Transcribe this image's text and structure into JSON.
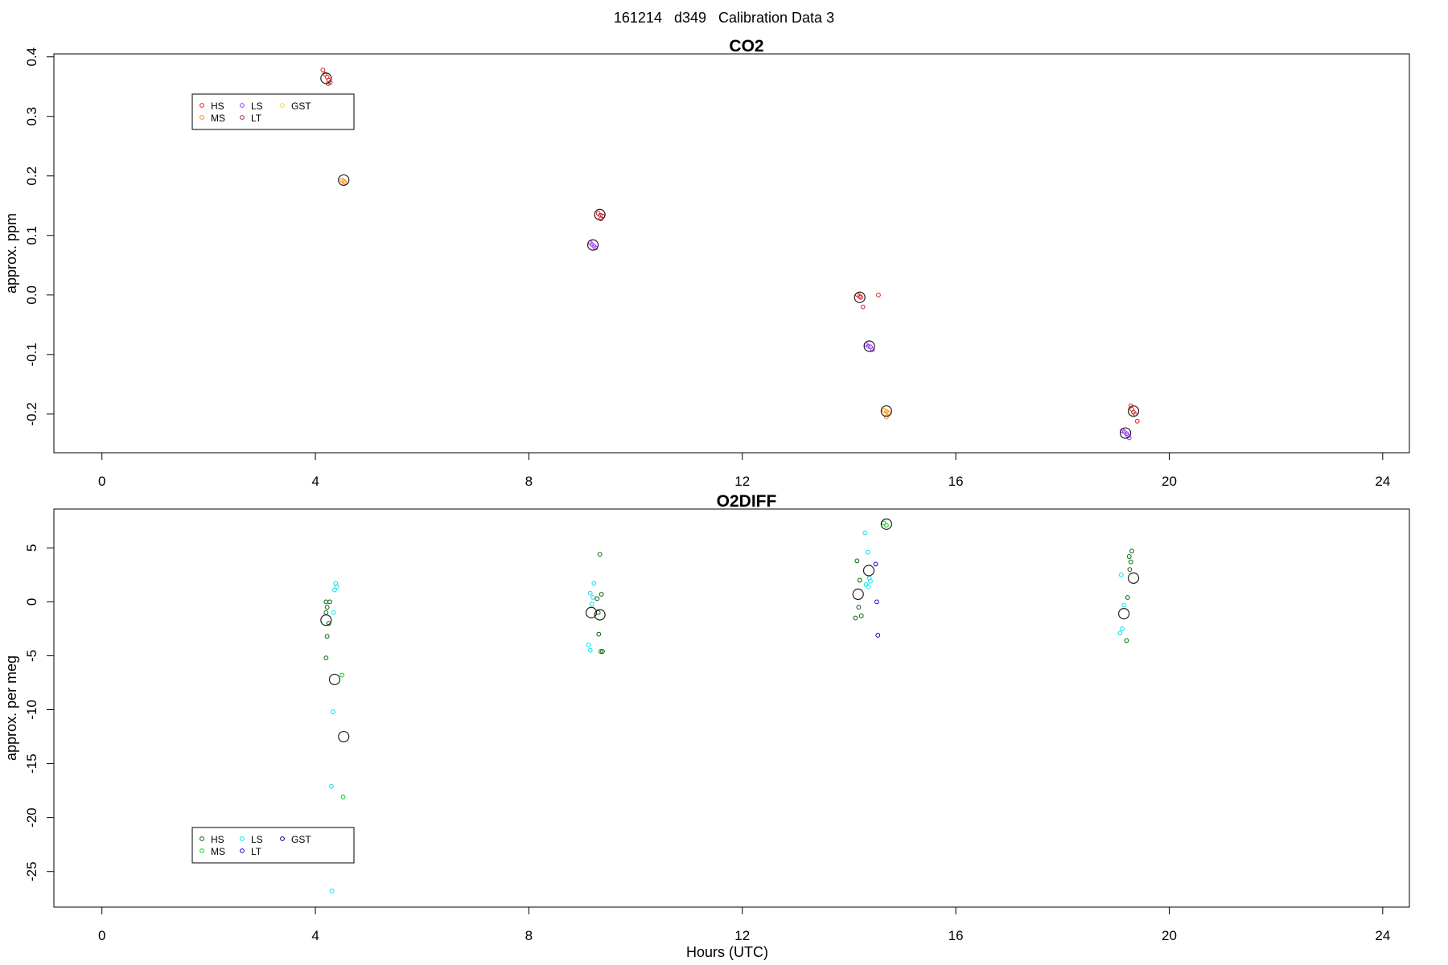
{
  "suptitle": "161214   d349   Calibration Data 3",
  "x_axis": {
    "label": "Hours (UTC)",
    "ticks": [
      0,
      4,
      8,
      12,
      16,
      20,
      24
    ],
    "range": [
      -0.9,
      24.5
    ]
  },
  "chart_data": [
    {
      "type": "scatter",
      "title": "CO2",
      "ylabel": "approx. ppm",
      "yticks": [
        -0.2,
        -0.1,
        0.0,
        0.1,
        0.2,
        0.3,
        0.4
      ],
      "yrange": [
        -0.265,
        0.405
      ],
      "legend": {
        "placement": "top-left",
        "entries": [
          {
            "name": "HS",
            "color": "#e31a1c"
          },
          {
            "name": "MS",
            "color": "#ff8c00"
          },
          {
            "name": "LS",
            "color": "#9b30ff"
          },
          {
            "name": "LT",
            "color": "#b22222"
          },
          {
            "name": "GST",
            "color": "#ffd700"
          }
        ]
      },
      "series": [
        {
          "name": "HS",
          "color": "#e31a1c",
          "points": [
            [
              4.14,
              0.378
            ],
            [
              4.18,
              0.371
            ],
            [
              4.22,
              0.366
            ],
            [
              4.25,
              0.361
            ],
            [
              4.28,
              0.357
            ],
            [
              4.24,
              0.355
            ],
            [
              9.3,
              0.137
            ],
            [
              9.34,
              0.134
            ],
            [
              9.38,
              0.133
            ],
            [
              9.35,
              0.128
            ],
            [
              14.16,
              0.0
            ],
            [
              14.2,
              -0.002
            ],
            [
              14.22,
              -0.004
            ],
            [
              14.26,
              -0.02
            ],
            [
              14.55,
              0.0
            ],
            [
              19.28,
              -0.186
            ],
            [
              19.3,
              -0.192
            ],
            [
              19.33,
              -0.197
            ],
            [
              19.36,
              -0.2
            ],
            [
              19.4,
              -0.212
            ]
          ]
        },
        {
          "name": "MS",
          "color": "#ff8c00",
          "points": [
            [
              4.5,
              0.193
            ],
            [
              4.53,
              0.191
            ],
            [
              4.55,
              0.189
            ],
            [
              14.66,
              -0.194
            ],
            [
              14.7,
              -0.196
            ],
            [
              14.74,
              -0.198
            ],
            [
              14.7,
              -0.205
            ]
          ]
        },
        {
          "name": "LS",
          "color": "#9b30ff",
          "points": [
            [
              9.15,
              0.088
            ],
            [
              9.18,
              0.085
            ],
            [
              9.22,
              0.082
            ],
            [
              9.25,
              0.079
            ],
            [
              14.32,
              -0.083
            ],
            [
              14.36,
              -0.086
            ],
            [
              14.4,
              -0.087
            ],
            [
              14.44,
              -0.092
            ],
            [
              19.12,
              -0.228
            ],
            [
              19.16,
              -0.23
            ],
            [
              19.2,
              -0.233
            ],
            [
              19.22,
              -0.236
            ],
            [
              19.25,
              -0.24
            ]
          ]
        }
      ],
      "means": [
        {
          "x": 4.2,
          "y": 0.364
        },
        {
          "x": 4.53,
          "y": 0.193
        },
        {
          "x": 9.33,
          "y": 0.135
        },
        {
          "x": 9.2,
          "y": 0.084
        },
        {
          "x": 14.2,
          "y": -0.004
        },
        {
          "x": 14.38,
          "y": -0.086
        },
        {
          "x": 14.7,
          "y": -0.195
        },
        {
          "x": 19.33,
          "y": -0.195
        },
        {
          "x": 19.18,
          "y": -0.232
        }
      ]
    },
    {
      "type": "scatter",
      "title": "O2DIFF",
      "ylabel": "approx. per meg",
      "yticks": [
        -25,
        -20,
        -15,
        -10,
        -5,
        0,
        5
      ],
      "yrange": [
        -28.3,
        8.6
      ],
      "legend": {
        "placement": "bottom-left",
        "entries": [
          {
            "name": "HS",
            "color": "#006400"
          },
          {
            "name": "MS",
            "color": "#00cd00"
          },
          {
            "name": "LS",
            "color": "#00e5ee"
          },
          {
            "name": "LT",
            "color": "#0000cd"
          },
          {
            "name": "GST",
            "color": "#00008b"
          }
        ]
      },
      "series": [
        {
          "name": "HS",
          "color": "#006400",
          "points": [
            [
              4.2,
              0.0
            ],
            [
              4.27,
              0.0
            ],
            [
              4.22,
              -0.5
            ],
            [
              4.2,
              -1.0
            ],
            [
              4.25,
              -2.0
            ],
            [
              4.22,
              -3.2
            ],
            [
              4.2,
              -5.2
            ],
            [
              9.33,
              4.4
            ],
            [
              9.36,
              0.7
            ],
            [
              9.28,
              0.3
            ],
            [
              9.3,
              -1.0
            ],
            [
              9.31,
              -3.0
            ],
            [
              9.35,
              -4.6
            ],
            [
              9.38,
              -4.6
            ],
            [
              14.15,
              3.8
            ],
            [
              14.2,
              2.0
            ],
            [
              14.18,
              -0.5
            ],
            [
              14.23,
              -1.3
            ],
            [
              14.12,
              -1.5
            ],
            [
              19.3,
              4.7
            ],
            [
              19.25,
              4.2
            ],
            [
              19.28,
              3.7
            ],
            [
              19.26,
              3.0
            ],
            [
              19.22,
              0.4
            ],
            [
              19.2,
              -3.6
            ]
          ]
        },
        {
          "name": "MS",
          "color": "#00cd00",
          "points": [
            [
              4.5,
              -6.8
            ],
            [
              4.52,
              -18.1
            ],
            [
              14.65,
              7.3
            ],
            [
              14.7,
              7.1
            ]
          ]
        },
        {
          "name": "LS",
          "color": "#00e5ee",
          "points": [
            [
              4.38,
              1.7
            ],
            [
              4.4,
              1.4
            ],
            [
              4.36,
              1.1
            ],
            [
              4.34,
              -1.0
            ],
            [
              4.33,
              -10.2
            ],
            [
              4.3,
              -17.1
            ],
            [
              4.31,
              -26.8
            ],
            [
              9.22,
              1.7
            ],
            [
              9.15,
              0.8
            ],
            [
              9.2,
              0.4
            ],
            [
              9.18,
              -0.2
            ],
            [
              9.12,
              -4.0
            ],
            [
              9.15,
              -4.5
            ],
            [
              14.3,
              6.4
            ],
            [
              14.35,
              4.6
            ],
            [
              14.38,
              2.2
            ],
            [
              14.4,
              1.9
            ],
            [
              14.32,
              1.6
            ],
            [
              14.36,
              1.4
            ],
            [
              19.1,
              2.5
            ],
            [
              19.15,
              -0.3
            ],
            [
              19.12,
              -2.5
            ],
            [
              19.08,
              -2.9
            ]
          ]
        },
        {
          "name": "LT",
          "color": "#0000cd",
          "points": [
            [
              14.5,
              3.5
            ],
            [
              14.52,
              0.0
            ],
            [
              14.54,
              -3.1
            ]
          ]
        }
      ],
      "means": [
        {
          "x": 4.2,
          "y": -1.7
        },
        {
          "x": 4.36,
          "y": -7.2
        },
        {
          "x": 4.53,
          "y": -12.5
        },
        {
          "x": 9.17,
          "y": -1.0
        },
        {
          "x": 9.33,
          "y": -1.2
        },
        {
          "x": 14.17,
          "y": 0.7
        },
        {
          "x": 14.37,
          "y": 2.9
        },
        {
          "x": 14.7,
          "y": 7.2
        },
        {
          "x": 19.15,
          "y": -1.1
        },
        {
          "x": 19.33,
          "y": 2.2
        }
      ]
    }
  ]
}
